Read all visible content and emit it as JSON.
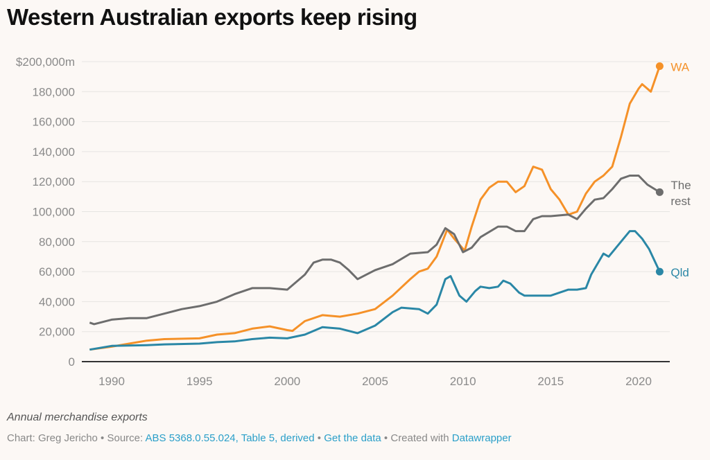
{
  "title": "Western Australian exports keep rising",
  "notes": "Annual merchandise exports",
  "byline": {
    "chart_prefix": "Chart: Greg Jericho",
    "sep": " • ",
    "source_prefix": "Source: ",
    "source_link": "ABS 5368.0.55.024, Table 5, derived",
    "get_data": "Get the data",
    "created_with": "Created with ",
    "datawrapper": "Datawrapper"
  },
  "chart_data": {
    "type": "line",
    "title": "Western Australian exports keep rising",
    "xlabel": "",
    "ylabel": "",
    "xlim": [
      1988.75,
      2021.2
    ],
    "ylim": [
      0,
      200000
    ],
    "grid": true,
    "x_ticks": [
      1990,
      1995,
      2000,
      2005,
      2010,
      2015,
      2020
    ],
    "y_ticks": [
      {
        "value": 0,
        "label": "0"
      },
      {
        "value": 20000,
        "label": "20,000"
      },
      {
        "value": 40000,
        "label": "40,000"
      },
      {
        "value": 60000,
        "label": "60,000"
      },
      {
        "value": 80000,
        "label": "80,000"
      },
      {
        "value": 100000,
        "label": "100,000"
      },
      {
        "value": 120000,
        "label": "120,000"
      },
      {
        "value": 140000,
        "label": "140,000"
      },
      {
        "value": 160000,
        "label": "160,000"
      },
      {
        "value": 180000,
        "label": "180,000"
      },
      {
        "value": 200000,
        "label": "$200,000m"
      }
    ],
    "series": [
      {
        "name": "WA",
        "label_lines": [
          "WA"
        ],
        "color": "#f59128",
        "points": [
          [
            1988.75,
            8000
          ],
          [
            1990,
            10000
          ],
          [
            1991,
            12000
          ],
          [
            1992,
            14000
          ],
          [
            1993,
            15000
          ],
          [
            1995,
            15500
          ],
          [
            1996,
            18000
          ],
          [
            1997,
            19000
          ],
          [
            1998,
            22000
          ],
          [
            1999,
            23500
          ],
          [
            2000,
            21000
          ],
          [
            2000.3,
            20500
          ],
          [
            2001,
            27000
          ],
          [
            2002,
            31000
          ],
          [
            2003,
            30000
          ],
          [
            2004,
            32000
          ],
          [
            2005,
            35000
          ],
          [
            2006,
            44000
          ],
          [
            2007,
            55000
          ],
          [
            2007.5,
            60000
          ],
          [
            2008,
            62000
          ],
          [
            2008.5,
            70000
          ],
          [
            2009.1,
            88000
          ],
          [
            2009.5,
            82000
          ],
          [
            2010.1,
            74000
          ],
          [
            2010.5,
            90000
          ],
          [
            2011,
            108000
          ],
          [
            2011.5,
            116000
          ],
          [
            2012,
            120000
          ],
          [
            2012.5,
            120000
          ],
          [
            2013,
            113000
          ],
          [
            2013.5,
            117000
          ],
          [
            2014,
            130000
          ],
          [
            2014.5,
            128000
          ],
          [
            2015,
            115000
          ],
          [
            2015.5,
            108000
          ],
          [
            2016,
            98000
          ],
          [
            2016.5,
            100000
          ],
          [
            2017,
            112000
          ],
          [
            2017.5,
            120000
          ],
          [
            2018,
            124000
          ],
          [
            2018.5,
            130000
          ],
          [
            2019,
            150000
          ],
          [
            2019.5,
            172000
          ],
          [
            2020,
            182000
          ],
          [
            2020.2,
            185000
          ],
          [
            2020.7,
            180000
          ],
          [
            2021.2,
            197000
          ]
        ]
      },
      {
        "name": "The rest",
        "label_lines": [
          "The",
          "rest"
        ],
        "color": "#6d6d6d",
        "points": [
          [
            1988.75,
            26000
          ],
          [
            1989,
            25000
          ],
          [
            1990,
            28000
          ],
          [
            1991,
            29000
          ],
          [
            1992,
            29000
          ],
          [
            1993,
            32000
          ],
          [
            1994,
            35000
          ],
          [
            1995,
            37000
          ],
          [
            1996,
            40000
          ],
          [
            1997,
            45000
          ],
          [
            1998,
            49000
          ],
          [
            1999,
            49000
          ],
          [
            2000,
            48000
          ],
          [
            2001,
            58000
          ],
          [
            2001.5,
            66000
          ],
          [
            2002,
            68000
          ],
          [
            2002.5,
            68000
          ],
          [
            2003,
            66000
          ],
          [
            2003.5,
            61000
          ],
          [
            2004,
            55000
          ],
          [
            2004.5,
            58000
          ],
          [
            2005,
            61000
          ],
          [
            2006,
            65000
          ],
          [
            2007,
            72000
          ],
          [
            2008,
            73000
          ],
          [
            2008.5,
            78000
          ],
          [
            2009,
            89000
          ],
          [
            2009.5,
            85000
          ],
          [
            2010,
            73000
          ],
          [
            2010.5,
            76000
          ],
          [
            2011,
            83000
          ],
          [
            2012,
            90000
          ],
          [
            2012.5,
            90000
          ],
          [
            2013,
            87000
          ],
          [
            2013.5,
            87000
          ],
          [
            2014,
            95000
          ],
          [
            2014.5,
            97000
          ],
          [
            2015,
            97000
          ],
          [
            2016,
            98000
          ],
          [
            2016.5,
            95000
          ],
          [
            2017,
            102000
          ],
          [
            2017.5,
            108000
          ],
          [
            2018,
            109000
          ],
          [
            2018.5,
            115000
          ],
          [
            2019,
            122000
          ],
          [
            2019.5,
            124000
          ],
          [
            2020,
            124000
          ],
          [
            2020.5,
            118000
          ],
          [
            2021.2,
            113000
          ]
        ]
      },
      {
        "name": "Qld",
        "label_lines": [
          "Qld"
        ],
        "color": "#2a87a6",
        "points": [
          [
            1988.75,
            8000
          ],
          [
            1990,
            10500
          ],
          [
            1992,
            11000
          ],
          [
            1993,
            11500
          ],
          [
            1995,
            12000
          ],
          [
            1996,
            13000
          ],
          [
            1997,
            13500
          ],
          [
            1998,
            15000
          ],
          [
            1999,
            16000
          ],
          [
            2000,
            15500
          ],
          [
            2001,
            18000
          ],
          [
            2002,
            23000
          ],
          [
            2003,
            22000
          ],
          [
            2004,
            19000
          ],
          [
            2005,
            24000
          ],
          [
            2006,
            33000
          ],
          [
            2006.5,
            36000
          ],
          [
            2007.5,
            35000
          ],
          [
            2008,
            32000
          ],
          [
            2008.5,
            38000
          ],
          [
            2009,
            55000
          ],
          [
            2009.3,
            57000
          ],
          [
            2009.8,
            44000
          ],
          [
            2010.2,
            40000
          ],
          [
            2010.7,
            47000
          ],
          [
            2011,
            50000
          ],
          [
            2011.5,
            49000
          ],
          [
            2012,
            50000
          ],
          [
            2012.3,
            54000
          ],
          [
            2012.7,
            52000
          ],
          [
            2013.2,
            46000
          ],
          [
            2013.5,
            44000
          ],
          [
            2014.5,
            44000
          ],
          [
            2015,
            44000
          ],
          [
            2016,
            48000
          ],
          [
            2016.5,
            48000
          ],
          [
            2017,
            49000
          ],
          [
            2017.3,
            58000
          ],
          [
            2017.7,
            66000
          ],
          [
            2018,
            72000
          ],
          [
            2018.3,
            70000
          ],
          [
            2019,
            80000
          ],
          [
            2019.5,
            87000
          ],
          [
            2019.8,
            87000
          ],
          [
            2020.2,
            82000
          ],
          [
            2020.6,
            75000
          ],
          [
            2021.2,
            60000
          ]
        ]
      }
    ]
  }
}
